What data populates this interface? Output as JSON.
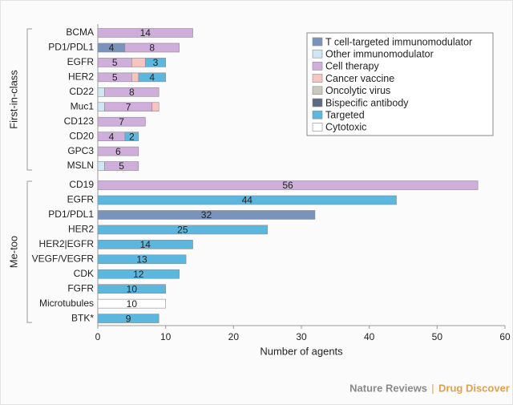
{
  "chart_data": {
    "type": "stacked-bar-horizontal",
    "xlabel": "Number of agents",
    "xlim": [
      0,
      60
    ],
    "xticks": [
      0,
      10,
      20,
      30,
      40,
      50,
      60
    ],
    "groups": [
      {
        "name": "First-in-class",
        "categories": [
          "BCMA",
          "PD1/PDL1",
          "EGFR",
          "HER2",
          "CD22",
          "Muc1",
          "CD123",
          "CD20",
          "GPC3",
          "MSLN"
        ]
      },
      {
        "name": "Me-too",
        "categories": [
          "CD19",
          "EGFR",
          "PD1/PDL1",
          "HER2",
          "HER2|EGFR",
          "VEGF/VEGFR",
          "CDK",
          "FGFR",
          "Microtubules",
          "BTK*"
        ]
      }
    ],
    "legend_position": "upper right",
    "series": [
      {
        "name": "T cell-targeted immunomodulator",
        "color": "#7a93bb",
        "show_labels": true,
        "values": [
          null,
          4,
          null,
          null,
          null,
          null,
          null,
          null,
          null,
          null,
          null,
          null,
          32,
          null,
          null,
          null,
          null,
          null,
          null,
          null
        ]
      },
      {
        "name": "Other immunomodulator",
        "color": "#cfe6f4",
        "show_labels": false,
        "values": [
          null,
          null,
          null,
          null,
          1,
          1,
          null,
          null,
          null,
          1,
          null,
          null,
          null,
          null,
          null,
          null,
          null,
          null,
          null,
          null
        ]
      },
      {
        "name": "Cell therapy",
        "color": "#cfaedb",
        "show_labels": true,
        "values": [
          14,
          8,
          5,
          5,
          8,
          7,
          7,
          4,
          6,
          5,
          56,
          null,
          null,
          null,
          null,
          null,
          null,
          null,
          null,
          null
        ]
      },
      {
        "name": "Cancer vaccine",
        "color": "#f7c4c2",
        "show_labels": false,
        "values": [
          null,
          null,
          2,
          1,
          null,
          1,
          null,
          null,
          null,
          null,
          null,
          null,
          null,
          null,
          null,
          null,
          null,
          null,
          null,
          null
        ]
      },
      {
        "name": "Oncolytic virus",
        "color": "#c9c9c0",
        "show_labels": true,
        "values": [
          null,
          null,
          null,
          null,
          null,
          null,
          null,
          null,
          null,
          null,
          null,
          null,
          null,
          null,
          null,
          null,
          null,
          null,
          null,
          null
        ]
      },
      {
        "name": "Bispecific antibody",
        "color": "#5d6b80",
        "show_labels": true,
        "values": [
          null,
          null,
          null,
          null,
          null,
          null,
          null,
          null,
          null,
          null,
          null,
          null,
          null,
          null,
          null,
          null,
          null,
          null,
          null,
          null
        ]
      },
      {
        "name": "Targeted",
        "color": "#5cb7df",
        "show_labels": true,
        "values": [
          null,
          null,
          3,
          4,
          null,
          null,
          null,
          2,
          null,
          null,
          null,
          44,
          null,
          25,
          14,
          13,
          12,
          10,
          null,
          9
        ]
      },
      {
        "name": "Cytotoxic",
        "color": "#ffffff",
        "show_labels": true,
        "values": [
          null,
          null,
          null,
          null,
          null,
          null,
          null,
          null,
          null,
          null,
          null,
          null,
          null,
          null,
          null,
          null,
          null,
          null,
          10,
          null
        ]
      }
    ],
    "footer": {
      "brand": "Nature Reviews",
      "separator": "|",
      "journal": "Drug Discover"
    }
  }
}
